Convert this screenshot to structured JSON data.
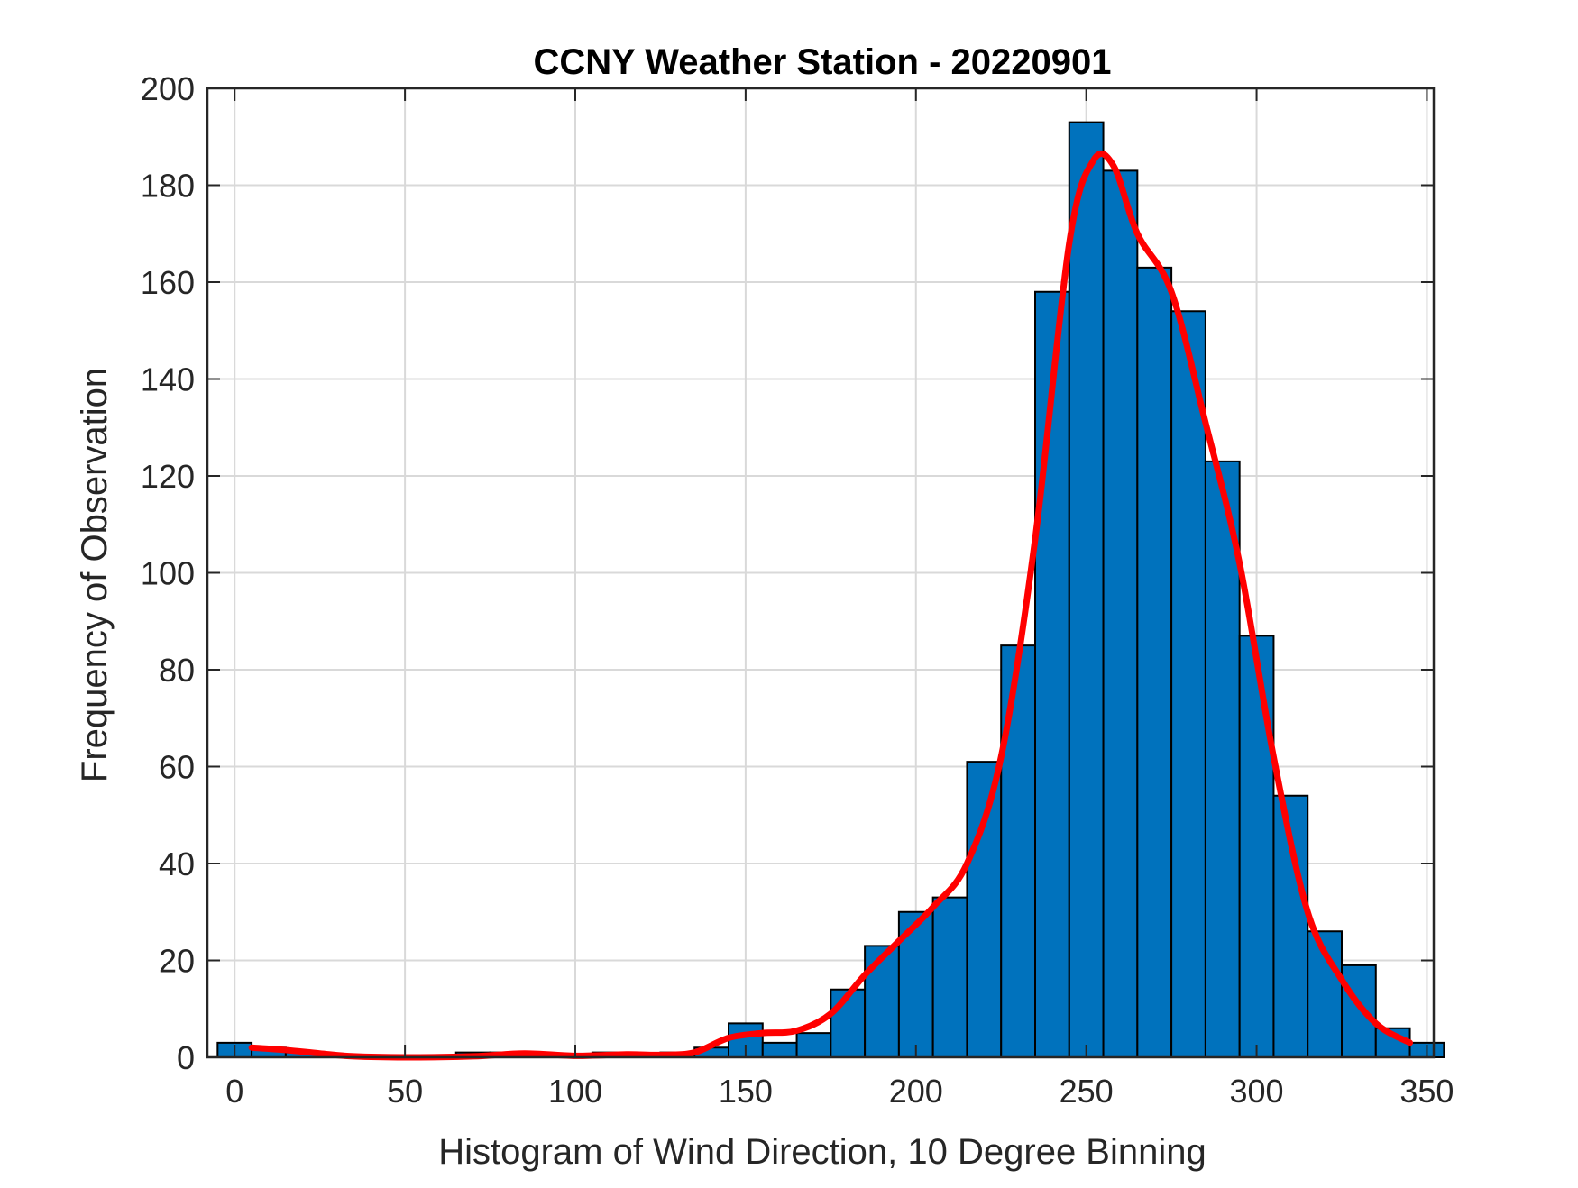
{
  "chart_data": {
    "type": "bar",
    "title": "CCNY Weather Station - 20220901",
    "xlabel": "Histogram of Wind Direction, 10 Degree Binning",
    "ylabel": "Frequency of Observation",
    "xlim": [
      -8,
      352
    ],
    "ylim": [
      0,
      200
    ],
    "xticks": [
      0,
      50,
      100,
      150,
      200,
      250,
      300,
      350
    ],
    "yticks": [
      0,
      20,
      40,
      60,
      80,
      100,
      120,
      140,
      160,
      180,
      200
    ],
    "grid": true,
    "bin_width": 10,
    "bins": [
      {
        "start": 0,
        "count": 3
      },
      {
        "start": 10,
        "count": 2
      },
      {
        "start": 20,
        "count": 1
      },
      {
        "start": 30,
        "count": 0
      },
      {
        "start": 40,
        "count": 0
      },
      {
        "start": 50,
        "count": 0
      },
      {
        "start": 60,
        "count": 0
      },
      {
        "start": 70,
        "count": 1
      },
      {
        "start": 80,
        "count": 1
      },
      {
        "start": 90,
        "count": 0
      },
      {
        "start": 100,
        "count": 0
      },
      {
        "start": 110,
        "count": 1
      },
      {
        "start": 120,
        "count": 0
      },
      {
        "start": 130,
        "count": 1
      },
      {
        "start": 140,
        "count": 2
      },
      {
        "start": 150,
        "count": 7
      },
      {
        "start": 160,
        "count": 3
      },
      {
        "start": 170,
        "count": 5
      },
      {
        "start": 180,
        "count": 14
      },
      {
        "start": 190,
        "count": 23
      },
      {
        "start": 200,
        "count": 30
      },
      {
        "start": 210,
        "count": 33
      },
      {
        "start": 220,
        "count": 61
      },
      {
        "start": 230,
        "count": 85
      },
      {
        "start": 240,
        "count": 158
      },
      {
        "start": 250,
        "count": 193
      },
      {
        "start": 260,
        "count": 183
      },
      {
        "start": 270,
        "count": 163
      },
      {
        "start": 280,
        "count": 154
      },
      {
        "start": 290,
        "count": 123
      },
      {
        "start": 300,
        "count": 87
      },
      {
        "start": 310,
        "count": 54
      },
      {
        "start": 320,
        "count": 26
      },
      {
        "start": 330,
        "count": 19
      },
      {
        "start": 340,
        "count": 6
      },
      {
        "start": 350,
        "count": 3
      }
    ],
    "fit_curve": {
      "color": "#ff0000",
      "points": [
        [
          5,
          2
        ],
        [
          15,
          1.5
        ],
        [
          25,
          0.8
        ],
        [
          35,
          0.2
        ],
        [
          50,
          0
        ],
        [
          70,
          0.2
        ],
        [
          85,
          0.8
        ],
        [
          100,
          0.3
        ],
        [
          115,
          0.6
        ],
        [
          125,
          0.5
        ],
        [
          135,
          1
        ],
        [
          145,
          4
        ],
        [
          155,
          5
        ],
        [
          165,
          5.5
        ],
        [
          175,
          9
        ],
        [
          185,
          17
        ],
        [
          195,
          24
        ],
        [
          205,
          31
        ],
        [
          215,
          40
        ],
        [
          225,
          62
        ],
        [
          235,
          107
        ],
        [
          245,
          168
        ],
        [
          252,
          185
        ],
        [
          258,
          184
        ],
        [
          265,
          170
        ],
        [
          275,
          158
        ],
        [
          285,
          131
        ],
        [
          295,
          102
        ],
        [
          305,
          62
        ],
        [
          315,
          30
        ],
        [
          325,
          16
        ],
        [
          335,
          7
        ],
        [
          345,
          3
        ]
      ]
    },
    "colors": {
      "bar_fill": "#0072bd",
      "bar_edge": "#000000",
      "grid": "#d9d9d9",
      "axis": "#262626"
    }
  }
}
